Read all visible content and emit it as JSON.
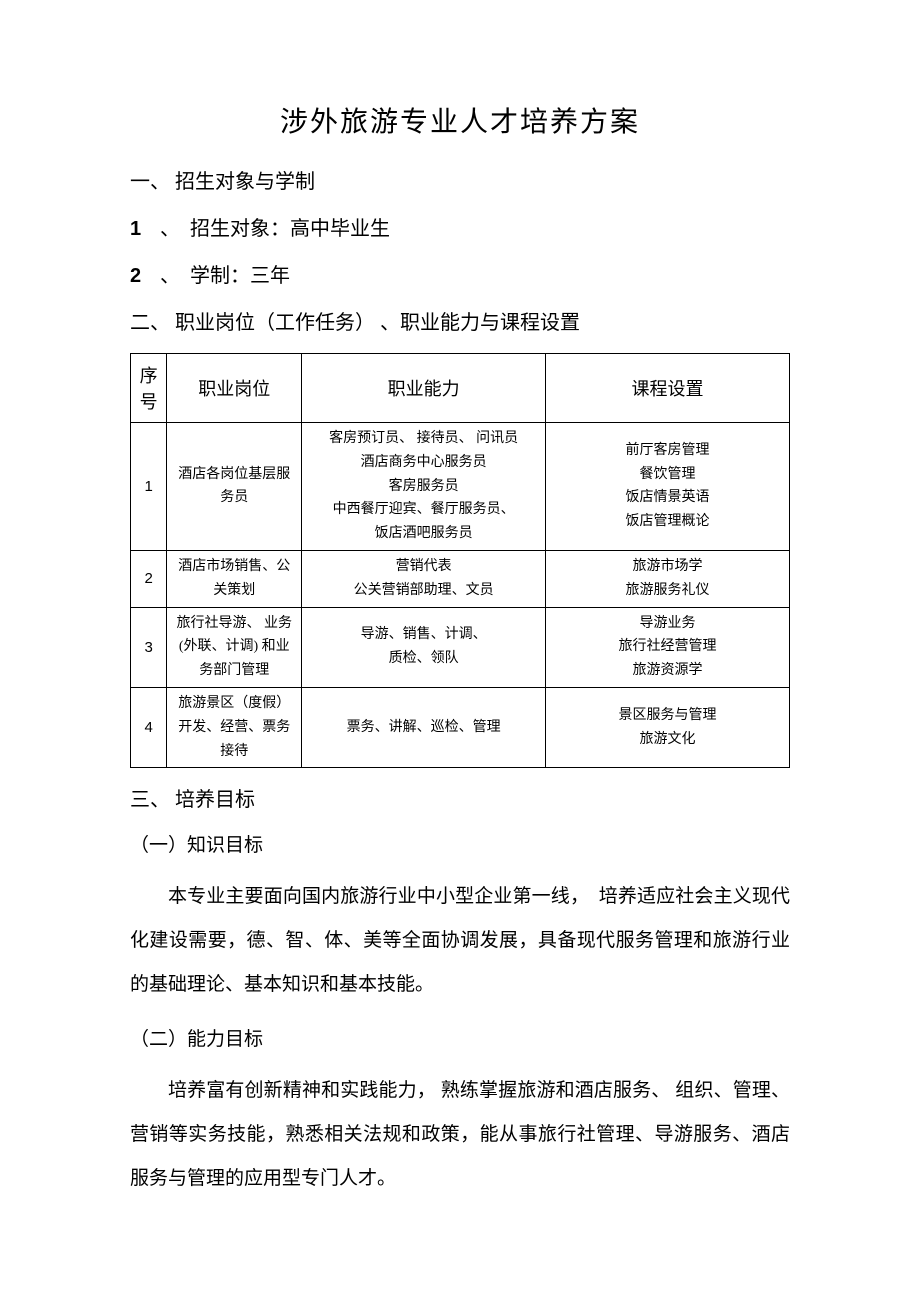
{
  "title": "涉外旅游专业人才培养方案",
  "section1": {
    "heading": "一、 招生对象与学制",
    "item1_num": "1",
    "item1_dot": "、",
    "item1_text": "招生对象：高中毕业生",
    "item2_num": "2",
    "item2_dot": "、",
    "item2_text": "学制：三年"
  },
  "section2": {
    "heading": "二、 职业岗位（工作任务） 、职业能力与课程设置",
    "table": {
      "headers": {
        "seq": "序号",
        "position": "职业岗位",
        "ability": "职业能力",
        "course": "课程设置"
      },
      "rows": [
        {
          "seq": "1",
          "position": "酒店各岗位基层服务员",
          "ability_l1": "客房预订员、 接待员、 问讯员",
          "ability_l2": "酒店商务中心服务员",
          "ability_l3": "客房服务员",
          "ability_l4": "中西餐厅迎宾、餐厅服务员、",
          "ability_l5": "饭店酒吧服务员",
          "course_l1": "前厅客房管理",
          "course_l2": "餐饮管理",
          "course_l3": "饭店情景英语",
          "course_l4": "饭店管理概论"
        },
        {
          "seq": "2",
          "position": "酒店市场销售、公关策划",
          "ability_l1": "营销代表",
          "ability_l2": "公关营销部助理、文员",
          "course_l1": "旅游市场学",
          "course_l2": "旅游服务礼仪"
        },
        {
          "seq": "3",
          "position": "旅行社导游、 业务 (外联、计调) 和业务部门管理",
          "ability_l1": "导游、销售、计调、",
          "ability_l2": "质检、领队",
          "course_l1": "导游业务",
          "course_l2": "旅行社经营管理",
          "course_l3": "旅游资源学"
        },
        {
          "seq": "4",
          "position": "旅游景区（度假）开发、经营、票务接待",
          "ability_l1": "票务、讲解、巡检、管理",
          "course_l1": "景区服务与管理",
          "course_l2": "旅游文化"
        }
      ]
    }
  },
  "section3": {
    "heading": "三、 培养目标",
    "sub1": {
      "heading": "（一）知识目标",
      "text": "本专业主要面向国内旅游行业中小型企业第一线，　培养适应社会主义现代化建设需要，德、智、体、美等全面协调发展，具备现代服务管理和旅游行业的基础理论、基本知识和基本技能。"
    },
    "sub2": {
      "heading": "（二）能力目标",
      "text": "培养富有创新精神和实践能力， 熟练掌握旅游和酒店服务、 组织、管理、营销等实务技能，熟悉相关法规和政策，能从事旅行社管理、导游服务、酒店服务与管理的应用型专门人才。"
    }
  }
}
